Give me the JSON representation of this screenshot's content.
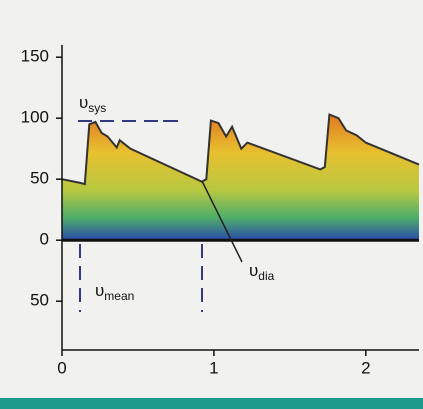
{
  "chart_data": {
    "type": "area",
    "x": [
      0,
      0.12,
      0.15,
      0.18,
      0.22,
      0.26,
      0.3,
      0.36,
      0.38,
      0.45,
      0.92,
      0.95,
      0.98,
      1.03,
      1.08,
      1.12,
      1.18,
      1.22,
      1.7,
      1.73,
      1.76,
      1.82,
      1.87,
      1.94,
      2.0,
      2.35
    ],
    "values": [
      50,
      47,
      46,
      95,
      97,
      88,
      85,
      76,
      82,
      75,
      48,
      50,
      98,
      96,
      85,
      93,
      75,
      80,
      58,
      60,
      103,
      100,
      90,
      86,
      80,
      62
    ],
    "color": "#333333",
    "xlim": [
      0,
      2.35
    ],
    "xticks": [
      0,
      1,
      2
    ],
    "ylim": [
      -90,
      160
    ],
    "yticks": [
      {
        "value": -50,
        "label": "50"
      },
      0,
      50,
      100,
      150
    ],
    "annotations": [
      {
        "symbol": "υ",
        "sub": "sys"
      },
      {
        "symbol": "υ",
        "sub": "mean"
      },
      {
        "symbol": "υ",
        "sub": "dia"
      }
    ]
  }
}
